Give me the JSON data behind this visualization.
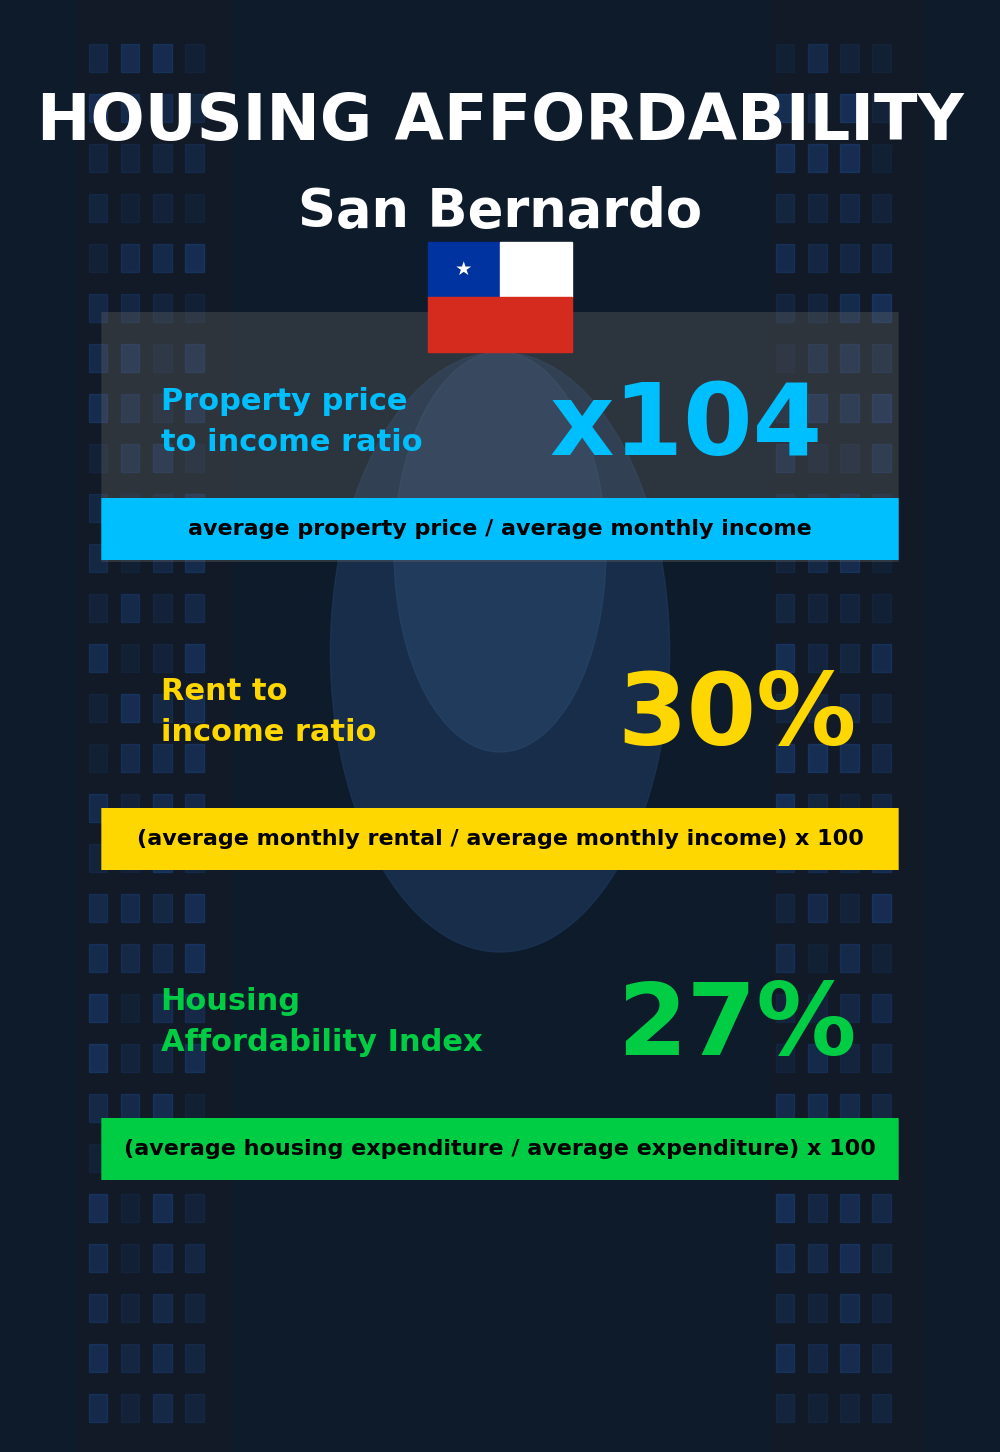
{
  "title_line1": "HOUSING AFFORDABILITY",
  "title_line2": "San Bernardo",
  "bg_color": "#0d1b2a",
  "section1_label": "Property price\nto income ratio",
  "section1_value": "x104",
  "section1_label_color": "#00bfff",
  "section1_value_color": "#00bfff",
  "section1_formula": "average property price / average monthly income",
  "section1_formula_bg": "#00bfff",
  "section1_formula_color": "#000000",
  "section1_panel_color": "#444444",
  "section1_panel_alpha": 0.35,
  "section2_label": "Rent to\nincome ratio",
  "section2_value": "30%",
  "section2_label_color": "#FFD700",
  "section2_value_color": "#FFD700",
  "section2_formula": "(average monthly rental / average monthly income) x 100",
  "section2_formula_bg": "#FFD700",
  "section2_formula_color": "#000000",
  "section3_label": "Housing\nAffordability Index",
  "section3_value": "27%",
  "section3_label_color": "#00cc44",
  "section3_value_color": "#00cc44",
  "section3_formula": "(average housing expenditure / average expenditure) x 100",
  "section3_formula_bg": "#00cc44",
  "section3_formula_color": "#000000",
  "title_color": "#ffffff",
  "title_fontsize": 46,
  "subtitle_fontsize": 38,
  "label_fontsize": 22,
  "value_fontsize": 72,
  "formula_fontsize": 16
}
